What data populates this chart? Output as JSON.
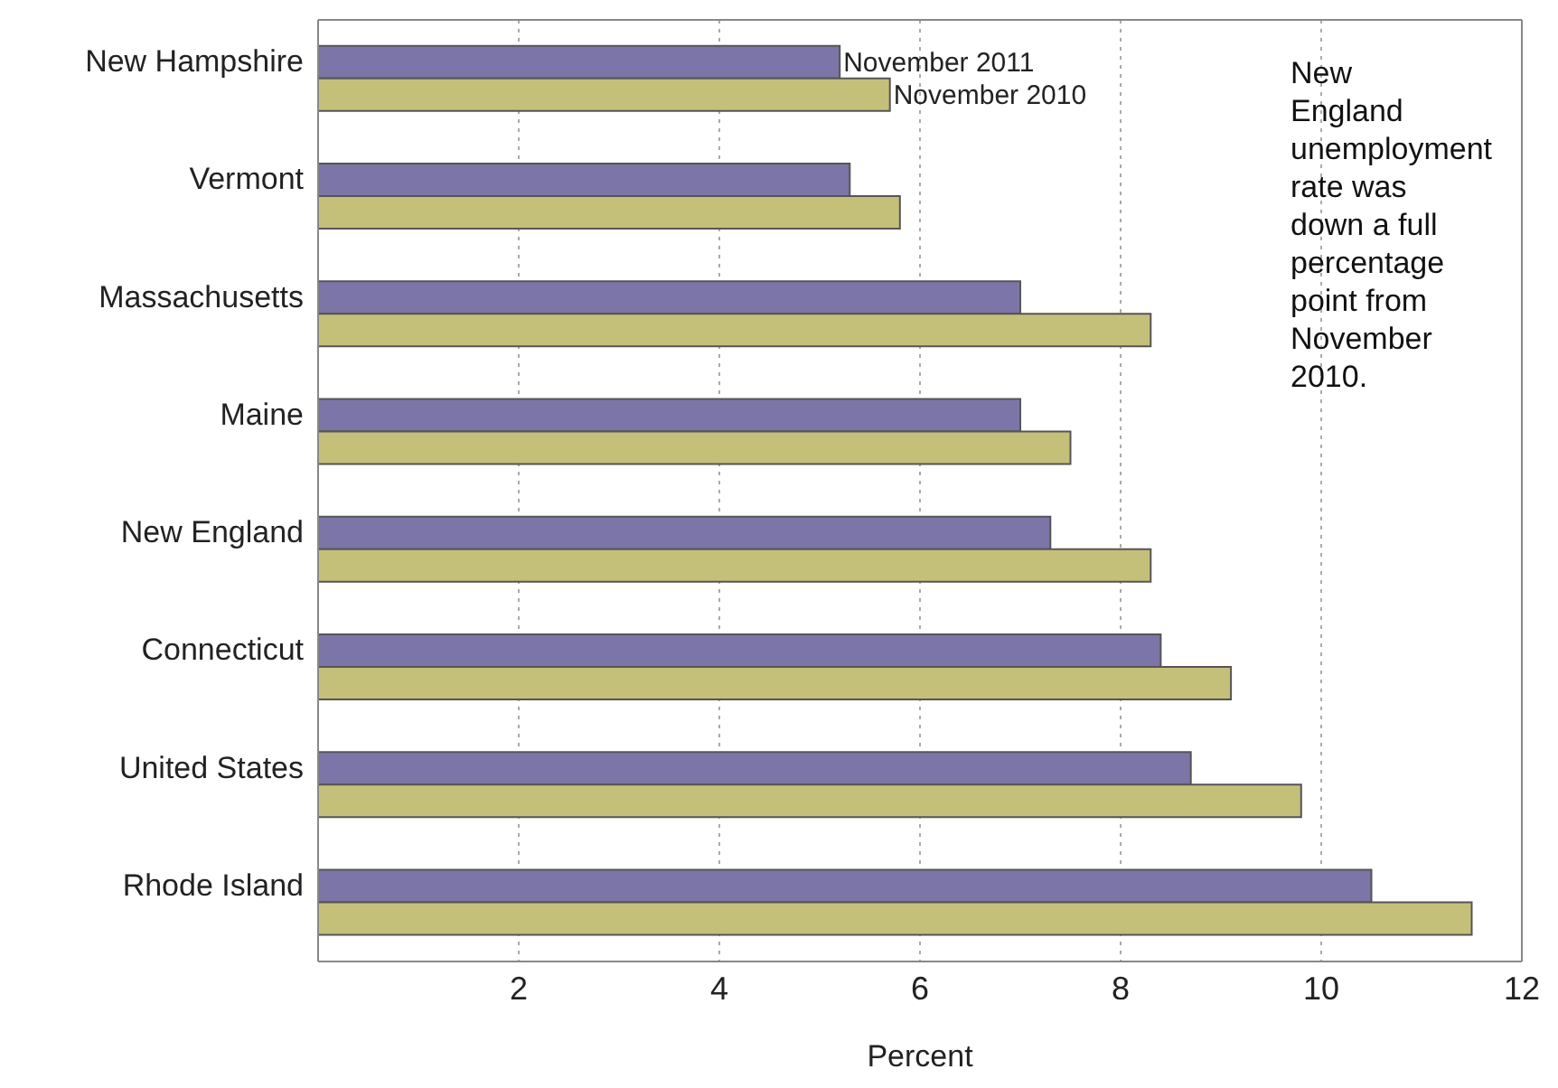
{
  "chart_data": {
    "type": "bar",
    "orientation": "horizontal",
    "xlabel": "Percent",
    "categories": [
      "New Hampshire",
      "Vermont",
      "Massachusetts",
      "Maine",
      "New England",
      "Connecticut",
      "United States",
      "Rhode Island"
    ],
    "series": [
      {
        "name": "November 2011",
        "color": "#7b75a8",
        "values": [
          5.2,
          5.3,
          7.0,
          7.0,
          7.3,
          8.4,
          8.7,
          10.5
        ]
      },
      {
        "name": "November 2010",
        "color": "#c4c07a",
        "values": [
          5.7,
          5.8,
          8.3,
          7.5,
          8.3,
          9.1,
          9.8,
          11.5
        ]
      }
    ],
    "xlim": [
      0,
      12
    ],
    "xticks": [
      2,
      4,
      6,
      8,
      10,
      12
    ],
    "grid": "x",
    "legend": false,
    "annotations": [
      "New England unemployment rate was down a full percentage point from November 2010."
    ]
  }
}
